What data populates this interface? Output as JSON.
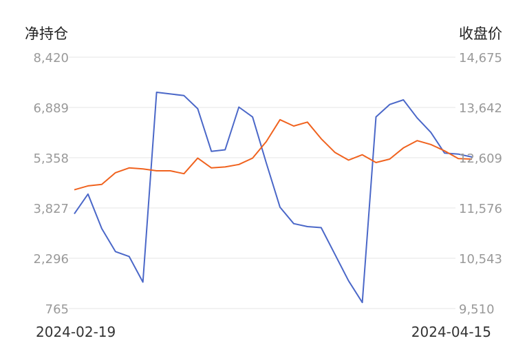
{
  "chart_data": {
    "type": "line",
    "left_axis_title": "净持仓",
    "right_axis_title": "收盘价",
    "left_ticks": [
      "8,420",
      "6,889",
      "5,358",
      "3,827",
      "2,296",
      "765"
    ],
    "right_ticks": [
      "14,675",
      "13,642",
      "12,609",
      "11,576",
      "10,543",
      "9,510"
    ],
    "left_range": [
      765,
      8420
    ],
    "right_range": [
      9510,
      14675
    ],
    "x_start_label": "2024-02-19",
    "x_end_label": "2024-04-15",
    "grid": true,
    "series": [
      {
        "axis": "left",
        "color": "#4a67c8",
        "values": [
          3650,
          4250,
          3200,
          2500,
          2350,
          1570,
          7350,
          7300,
          7250,
          6850,
          5550,
          5600,
          6900,
          6600,
          5200,
          3850,
          3350,
          3260,
          3230,
          2420,
          1610,
          950,
          6600,
          6980,
          7120,
          6570,
          6130,
          5500,
          5470,
          5380
        ]
      },
      {
        "axis": "right",
        "color": "#f0621e",
        "values": [
          11950,
          12030,
          12060,
          12300,
          12400,
          12380,
          12340,
          12340,
          12280,
          12600,
          12400,
          12420,
          12470,
          12600,
          12940,
          13390,
          13260,
          13340,
          13000,
          12720,
          12560,
          12670,
          12510,
          12580,
          12810,
          12960,
          12880,
          12750,
          12590,
          12580
        ]
      }
    ]
  }
}
